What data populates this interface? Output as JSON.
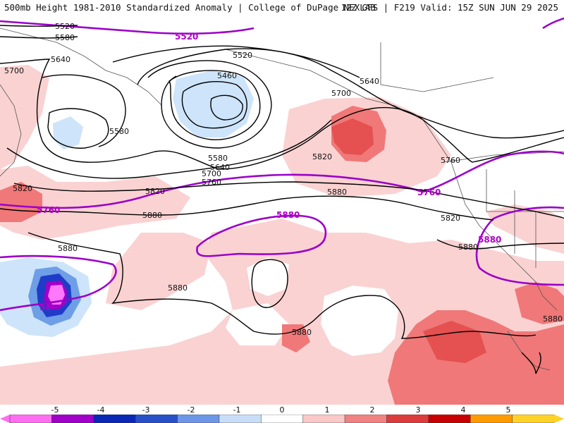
{
  "header": {
    "title": "500mb Height 1981-2010 Standardized Anomaly | College of DuPage NEXLAB",
    "run_info": "12Z GFS | F219 Valid: 15Z SUN JUN 29 2025"
  },
  "map": {
    "height_labels": [
      "5520",
      "5580",
      "5640",
      "5700",
      "5520",
      "5460",
      "5580",
      "5580",
      "5640",
      "5700",
      "5760",
      "5820",
      "5820",
      "5880",
      "5640",
      "5700",
      "5820",
      "5760",
      "5820",
      "5880",
      "5880",
      "5880",
      "5880",
      "5880",
      "5880",
      "5880"
    ],
    "ref_labels": [
      "5520",
      "5760",
      "5760",
      "5880",
      "5880",
      "58"
    ],
    "colors": {
      "anomaly_pos_1": "#fad2d2",
      "anomaly_pos_2": "#f07878",
      "anomaly_pos_3": "#e55050",
      "anomaly_neg_1": "#cde4fa",
      "anomaly_neg_2": "#6e9ee6",
      "anomaly_neg_4": "#1e3cc8",
      "anomaly_neg_5": "#ff78ff",
      "reference_contour": "#9b00c8",
      "height_contour": "#000000"
    }
  },
  "colorbar": {
    "ticks": [
      "-5",
      "-4",
      "-3",
      "-2",
      "-1",
      "0",
      "1",
      "2",
      "3",
      "4",
      "5"
    ],
    "colors": [
      "#ff6ef0",
      "#a000c8",
      "#0a28b4",
      "#2850c8",
      "#6e96e6",
      "#c8def8",
      "#ffffff",
      "#fac8c8",
      "#f08282",
      "#dc3c3c",
      "#c80000",
      "#ff9b00",
      "#ffd228"
    ]
  }
}
